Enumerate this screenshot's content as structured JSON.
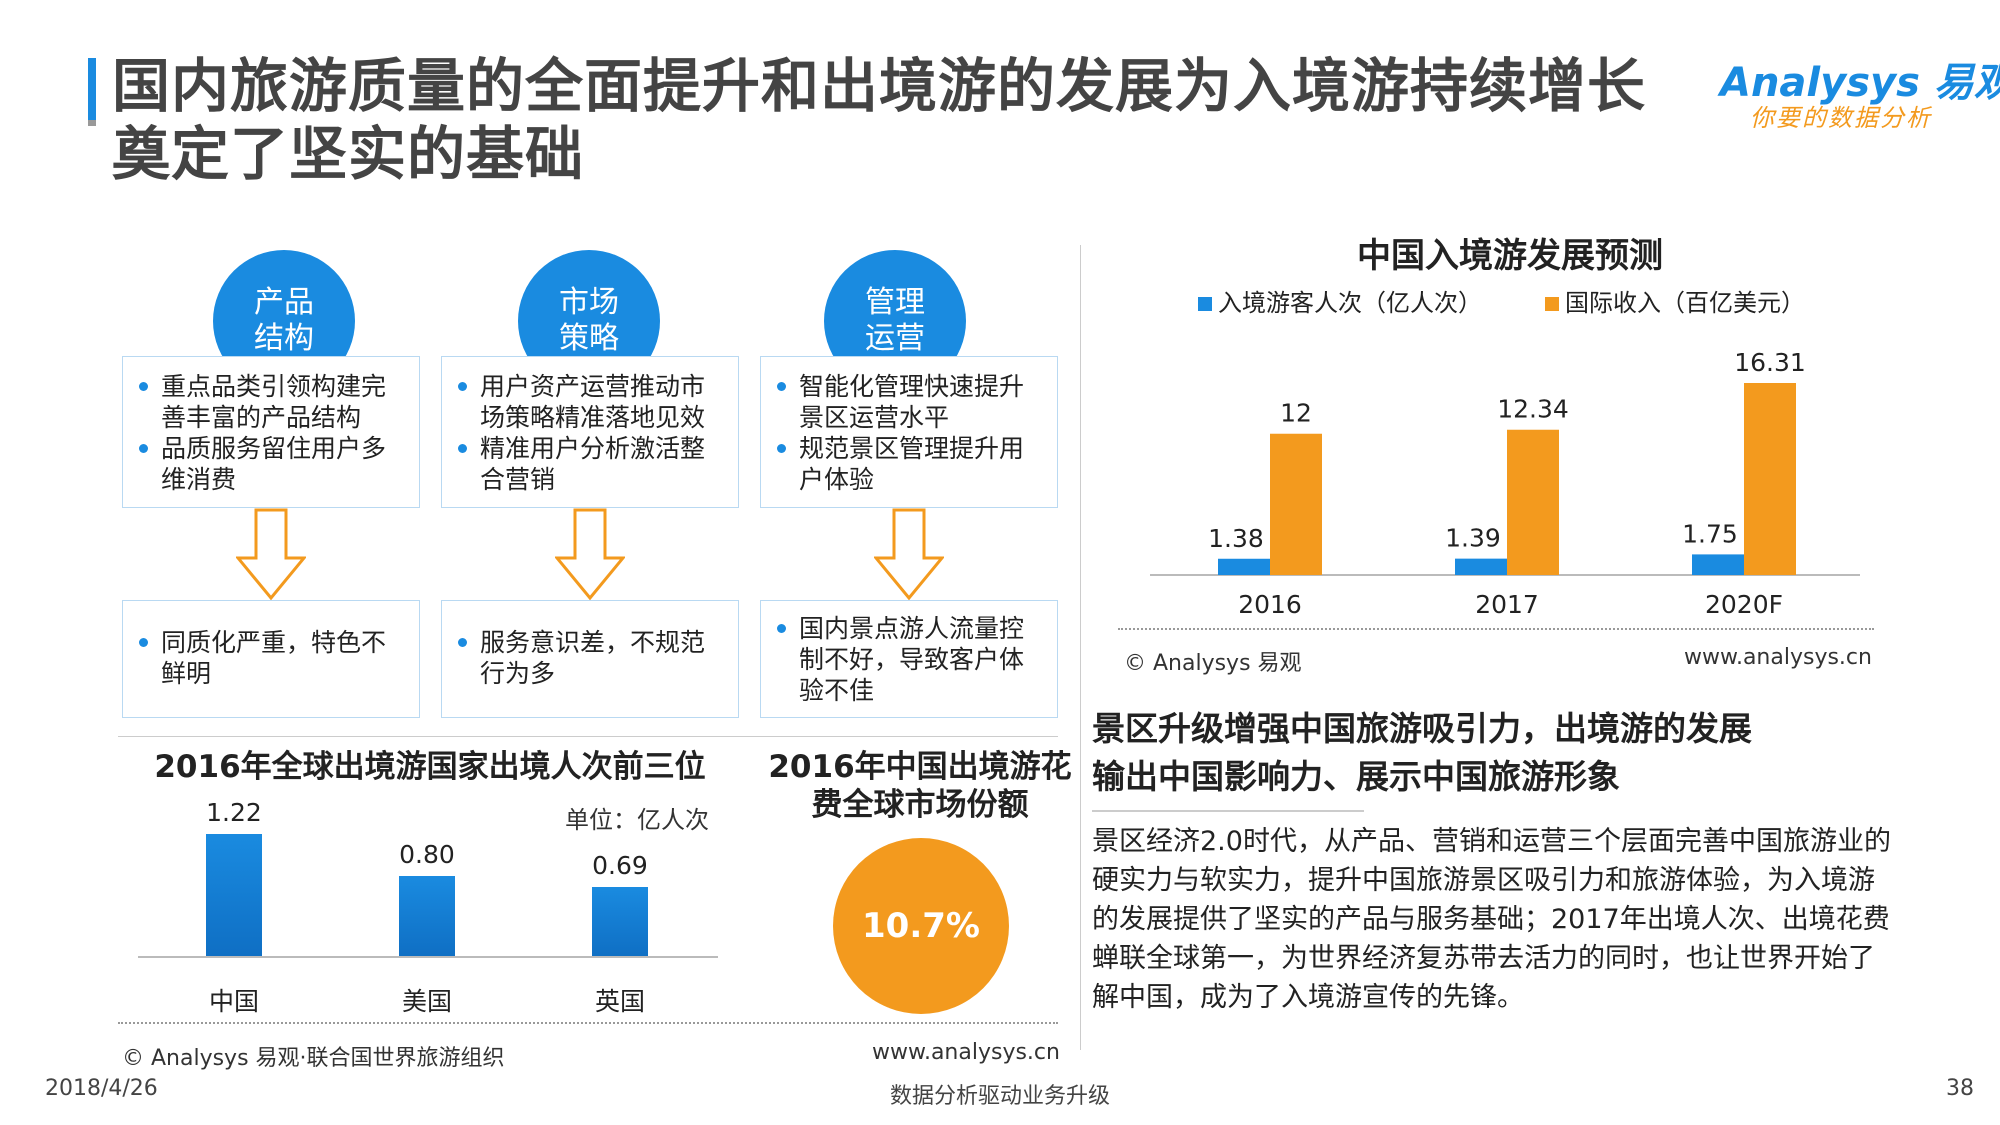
{
  "header": {
    "title_line1": "国内旅游质量的全面提升和出境游的发展为入境游持续增长",
    "title_line2": "奠定了坚实的基础",
    "logo_main": "Analysys 易观",
    "logo_sub": "你要的数据分析"
  },
  "pillars": [
    {
      "circle": "产品\n结构",
      "points": [
        "重点品类引领构建完善丰富的产品结构",
        "品质服务留住用户多维消费"
      ],
      "problem": "同质化严重，特色不鲜明"
    },
    {
      "circle": "市场\n策略",
      "points": [
        "用户资产运营推动市场策略精准落地见效",
        "精准用户分析激活整合营销"
      ],
      "problem": "服务意识差，不规范行为多"
    },
    {
      "circle": "管理\n运营",
      "points": [
        "智能化管理快速提升景区运营水平",
        "规范景区管理提升用户体验"
      ],
      "problem": "国内景点游人流量控制不好，导致客户体验不佳"
    }
  ],
  "left_chart": {
    "title": "2016年全球出境游国家出境人次前三位",
    "unit": "单位：亿人次"
  },
  "share": {
    "title": "2016年中国出境游花费全球市场份额",
    "value": "10.7%"
  },
  "left_source": {
    "copyright": "© Analysys 易观·联合国世界旅游组织",
    "url": "www.analysys.cn"
  },
  "right_source": {
    "copyright": "© Analysys 易观",
    "url": "www.analysys.cn"
  },
  "conclusion": {
    "title_line1": "景区升级增强中国旅游吸引力，出境游的发展",
    "title_line2": "输出中国影响力、展示中国旅游形象",
    "text": "景区经济2.0时代，从产品、营销和运营三个层面完善中国旅游业的硬实力与软实力，提升中国旅游景区吸引力和旅游体验，为入境游的发展提供了坚实的产品与服务基础；2017年出境人次、出境花费蝉联全球第一，为世界经济复苏带去活力的同时，也让世界开始了解中国，成为了入境游宣传的先锋。"
  },
  "footer": {
    "date": "2018/4/26",
    "slogan": "数据分析驱动业务升级",
    "page": "38"
  },
  "colors": {
    "blue": "#1a8be0",
    "orange": "#f39a1e"
  },
  "chart_data": [
    {
      "type": "bar",
      "title": "2016年全球出境游国家出境人次前三位",
      "categories": [
        "中国",
        "美国",
        "英国"
      ],
      "values": [
        1.22,
        0.8,
        0.69
      ],
      "value_labels": [
        "1.22",
        "0.80",
        "0.69"
      ],
      "ylabel": "单位：亿人次",
      "ylim": [
        0,
        1.3
      ]
    },
    {
      "type": "bar",
      "title": "中国入境游发展预测",
      "categories": [
        "2016",
        "2017",
        "2020F"
      ],
      "series": [
        {
          "name": "入境游客人次（亿人次）",
          "values": [
            1.38,
            1.39,
            1.75
          ],
          "labels": [
            "1.38",
            "1.39",
            "1.75"
          ],
          "color": "#1a8be0"
        },
        {
          "name": "国际收入（百亿美元）",
          "values": [
            12,
            12.34,
            16.31
          ],
          "labels": [
            "12",
            "12.34",
            "16.31"
          ],
          "color": "#f39a1e"
        }
      ],
      "legend": "top",
      "ylim": [
        0,
        17
      ]
    }
  ]
}
